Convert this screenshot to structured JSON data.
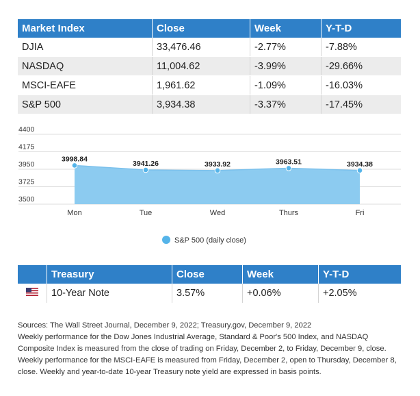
{
  "market_table": {
    "headers": [
      "Market Index",
      "Close",
      "Week",
      "Y-T-D"
    ],
    "rows": [
      [
        "DJIA",
        "33,476.46",
        "-2.77%",
        "-7.88%"
      ],
      [
        "NASDAQ",
        "11,004.62",
        "-3.99%",
        "-29.66%"
      ],
      [
        "MSCI-EAFE",
        "1,961.62",
        "-1.09%",
        "-16.03%"
      ],
      [
        "S&P 500",
        "3,934.38",
        "-3.37%",
        "-17.45%"
      ]
    ]
  },
  "chart_data": {
    "type": "area",
    "categories": [
      "Mon",
      "Tue",
      "Wed",
      "Thurs",
      "Fri"
    ],
    "series": [
      {
        "name": "S&P 500 (daily close)",
        "values": [
          3998.84,
          3941.26,
          3933.92,
          3963.51,
          3934.38
        ],
        "labels": [
          "3998.84",
          "3941.26",
          "3933.92",
          "3963.51",
          "3934.38"
        ]
      }
    ],
    "yticks": [
      "4400",
      "4175",
      "3950",
      "3725",
      "3500"
    ],
    "ylim": [
      3500,
      4400
    ],
    "title": "",
    "xlabel": "",
    "ylabel": "",
    "legend_position": "bottom-center",
    "fill_color": "#8ccbf0",
    "marker_color": "#55b4e9"
  },
  "treasury_table": {
    "headers": [
      "",
      "Treasury",
      "Close",
      "Week",
      "Y-T-D"
    ],
    "row": {
      "flag_icon": "us-flag-icon",
      "name": "10-Year Note",
      "close": "3.57%",
      "week": "+0.06%",
      "ytd": "+2.05%"
    }
  },
  "notes": {
    "line1": "Sources: The Wall Street Journal, December 9, 2022; Treasury.gov, December 9, 2022",
    "line2": "Weekly performance for the Dow Jones Industrial Average, Standard & Poor's 500 Index, and NASDAQ Composite Index is measured from the close of trading on Friday, December 2, to Friday, December 9, close. Weekly performance for the MSCI-EAFE is measured from Friday, December 2, open to Thursday, December 8, close. Weekly and year-to-date 10-year Treasury note yield are expressed in basis points."
  },
  "colors": {
    "header_bg": "#2f80c8",
    "row_shade": "#ececec"
  }
}
